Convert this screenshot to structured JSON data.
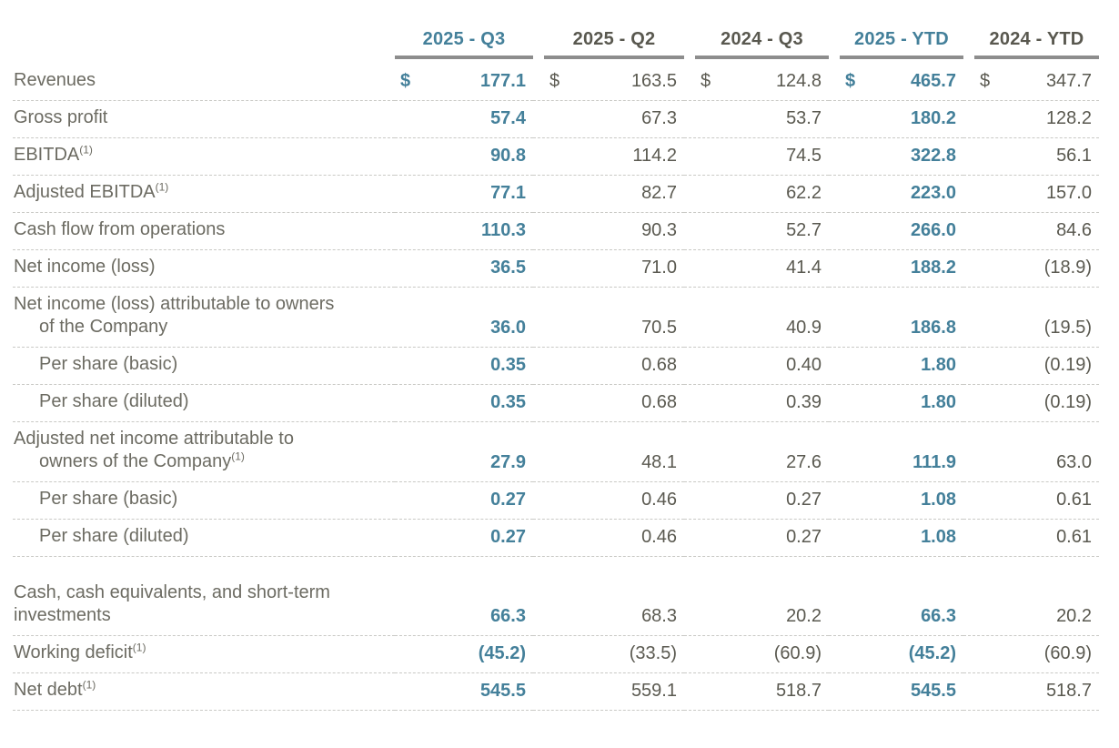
{
  "colors": {
    "accent_teal": "#44809A",
    "header_dark_gray": "#59584F",
    "value_dark_gray": "#5A5950",
    "label_gray": "#6C6B62",
    "header_underline_gray": "#8D8D8D",
    "row_divider_gray": "#C9C9C5",
    "background": "#FFFFFF"
  },
  "chart_data": {
    "type": "table",
    "title": "",
    "currency_symbol": "$",
    "legend": "Highlighted (teal, bold) columns: 2025 - Q3 and 2025 - YTD",
    "columns": [
      {
        "label": "2025 - Q3",
        "highlight": true
      },
      {
        "label": "2025 - Q2",
        "highlight": false
      },
      {
        "label": "2024 - Q3",
        "highlight": false
      },
      {
        "label": "2025 - YTD",
        "highlight": true
      },
      {
        "label": "2024 - YTD",
        "highlight": false
      }
    ],
    "rows": [
      {
        "label": "Revenues",
        "dollar": true,
        "lines": [
          {
            "text": "Revenues",
            "indent": 0,
            "sup": ""
          }
        ],
        "values": [
          "177.1",
          "163.5",
          "124.8",
          "465.7",
          "347.7"
        ]
      },
      {
        "label": "Gross profit",
        "lines": [
          {
            "text": "Gross profit",
            "indent": 0,
            "sup": ""
          }
        ],
        "values": [
          "57.4",
          "67.3",
          "53.7",
          "180.2",
          "128.2"
        ]
      },
      {
        "label": "EBITDA(1)",
        "lines": [
          {
            "text": "EBITDA",
            "indent": 0,
            "sup": "(1)"
          }
        ],
        "values": [
          "90.8",
          "114.2",
          "74.5",
          "322.8",
          "56.1"
        ]
      },
      {
        "label": "Adjusted EBITDA(1)",
        "lines": [
          {
            "text": "Adjusted EBITDA",
            "indent": 0,
            "sup": "(1)"
          }
        ],
        "values": [
          "77.1",
          "82.7",
          "62.2",
          "223.0",
          "157.0"
        ]
      },
      {
        "label": "Cash flow from operations",
        "lines": [
          {
            "text": "Cash flow from operations",
            "indent": 0,
            "sup": ""
          }
        ],
        "values": [
          "110.3",
          "90.3",
          "52.7",
          "266.0",
          "84.6"
        ]
      },
      {
        "label": "Net income (loss)",
        "lines": [
          {
            "text": "Net income (loss)",
            "indent": 0,
            "sup": ""
          }
        ],
        "values": [
          "36.5",
          "71.0",
          "41.4",
          "188.2",
          "(18.9)"
        ]
      },
      {
        "label": "Net income (loss) attributable to owners of the Company",
        "lines": [
          {
            "text": "Net income (loss) attributable to owners",
            "indent": 0,
            "sup": ""
          },
          {
            "text": "of the Company",
            "indent": 1,
            "sup": ""
          }
        ],
        "values": [
          "36.0",
          "70.5",
          "40.9",
          "186.8",
          "(19.5)"
        ]
      },
      {
        "label": "Per share (basic)",
        "lines": [
          {
            "text": "Per share (basic)",
            "indent": 1,
            "sup": ""
          }
        ],
        "values": [
          "0.35",
          "0.68",
          "0.40",
          "1.80",
          "(0.19)"
        ]
      },
      {
        "label": "Per share (diluted)",
        "lines": [
          {
            "text": "Per share (diluted)",
            "indent": 1,
            "sup": ""
          }
        ],
        "values": [
          "0.35",
          "0.68",
          "0.39",
          "1.80",
          "(0.19)"
        ]
      },
      {
        "label": "Adjusted net income attributable to owners of the Company(1)",
        "lines": [
          {
            "text": "Adjusted net income attributable to",
            "indent": 0,
            "sup": ""
          },
          {
            "text": "owners of the Company",
            "indent": 1,
            "sup": "(1)"
          }
        ],
        "values": [
          "27.9",
          "48.1",
          "27.6",
          "111.9",
          "63.0"
        ]
      },
      {
        "label": "Per share (basic)",
        "lines": [
          {
            "text": "Per share (basic)",
            "indent": 1,
            "sup": ""
          }
        ],
        "values": [
          "0.27",
          "0.46",
          "0.27",
          "1.08",
          "0.61"
        ]
      },
      {
        "label": "Per share (diluted)",
        "lines": [
          {
            "text": "Per share (diluted)",
            "indent": 1,
            "sup": ""
          }
        ],
        "values": [
          "0.27",
          "0.46",
          "0.27",
          "1.08",
          "0.61"
        ]
      },
      {
        "spacer": true
      },
      {
        "label": "Cash, cash equivalents, and short-term investments",
        "lines": [
          {
            "text": "Cash, cash equivalents, and short-term",
            "indent": 0,
            "sup": ""
          },
          {
            "text": "investments",
            "indent": 0,
            "sup": ""
          }
        ],
        "values": [
          "66.3",
          "68.3",
          "20.2",
          "66.3",
          "20.2"
        ]
      },
      {
        "label": "Working deficit(1)",
        "lines": [
          {
            "text": "Working deficit",
            "indent": 0,
            "sup": "(1)"
          }
        ],
        "values": [
          "(45.2)",
          "(33.5)",
          "(60.9)",
          "(45.2)",
          "(60.9)"
        ]
      },
      {
        "label": "Net debt(1)",
        "lines": [
          {
            "text": "Net debt",
            "indent": 0,
            "sup": "(1)"
          }
        ],
        "values": [
          "545.5",
          "559.1",
          "518.7",
          "545.5",
          "518.7"
        ]
      }
    ]
  }
}
